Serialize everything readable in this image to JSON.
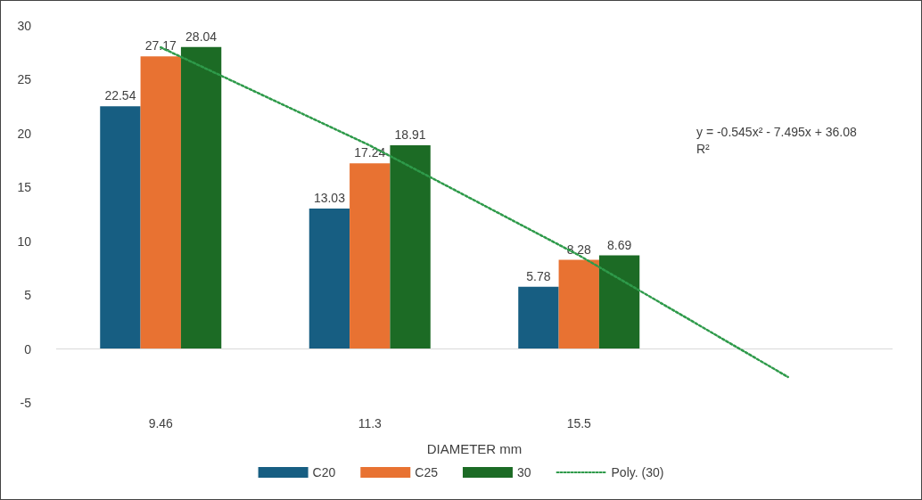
{
  "chart_data": {
    "type": "bar",
    "xlabel": "DIAMETER mm",
    "categories": [
      "9.46",
      "11.3",
      "15.5",
      null
    ],
    "series": [
      {
        "name": "C20",
        "color": "#175e82",
        "values": [
          22.54,
          13.03,
          5.78,
          null
        ],
        "value_labels": [
          "22.54",
          "13.03",
          "5.78",
          null
        ]
      },
      {
        "name": "C25",
        "color": "#e87232",
        "values": [
          27.17,
          17.24,
          8.28,
          null
        ],
        "value_labels": [
          "27.17",
          "17.24",
          "8.28",
          null
        ]
      },
      {
        "name": "30",
        "color": "#1c6b25",
        "values": [
          28.04,
          18.91,
          8.69,
          null
        ],
        "value_labels": [
          "28.04",
          "18.91",
          "8.69",
          null
        ]
      },
      {
        "name": "Poly. (30)",
        "type": "line",
        "color": "#2e9a4a",
        "line_style": "dotted",
        "marker": "none",
        "values": [
          28.0,
          18.9,
          8.7,
          -2.6
        ]
      }
    ],
    "ylim": [
      -5,
      30
    ],
    "yticks": [
      -5,
      0,
      5,
      10,
      15,
      20,
      25,
      30
    ],
    "grid": false,
    "ref_lines": [
      {
        "axis": "y",
        "value": 0,
        "color": "#d9d9d9"
      }
    ],
    "legend": "bottom",
    "annotations": [
      "y = -0.545x² - 7.495x + 36.08",
      "R²"
    ]
  }
}
